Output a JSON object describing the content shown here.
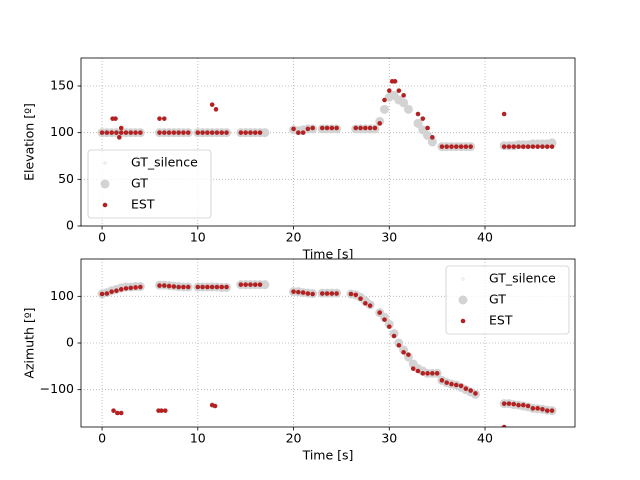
{
  "chart_data": [
    {
      "type": "scatter",
      "xlabel": "Time [s]",
      "ylabel": "Elevation [º]",
      "xlim": [
        -2.2,
        49.4
      ],
      "ylim": [
        0,
        180
      ],
      "xticks": [
        0,
        10,
        20,
        30,
        40
      ],
      "yticks": [
        0,
        50,
        100,
        150
      ],
      "grid": true,
      "legend": "lower left",
      "series": [
        {
          "name": "GT_silence",
          "color": "#f0f0f0",
          "x": [
            0,
            0.3,
            0.6,
            1,
            1.5,
            2,
            2.5,
            3
          ],
          "values": [
            100,
            100,
            100,
            100,
            100,
            100,
            100,
            100
          ]
        },
        {
          "name": "GT",
          "color": "#d3d3d3",
          "x": [
            0,
            0.5,
            1,
            1.5,
            2,
            2.5,
            3,
            3.5,
            4,
            6,
            6.5,
            7,
            7.5,
            8,
            8.5,
            9,
            10,
            10.5,
            11,
            11.5,
            12,
            12.5,
            13,
            14.5,
            15,
            15.5,
            16,
            16.5,
            17,
            20,
            20.5,
            21,
            21.5,
            22,
            23,
            23.5,
            24,
            24.5,
            26.5,
            27,
            27.5,
            28,
            28.5,
            29,
            29.5,
            30,
            30.5,
            31,
            31.5,
            32,
            33,
            33.5,
            34,
            34.5,
            35.5,
            36,
            36.5,
            37,
            37.5,
            38,
            38.5,
            42,
            42.5,
            43,
            43.5,
            44,
            44.5,
            45,
            45.5,
            46,
            46.5,
            47
          ],
          "values": [
            100,
            100,
            100,
            100,
            100,
            100,
            100,
            100,
            100,
            100,
            100,
            100,
            100,
            100,
            100,
            100,
            100,
            100,
            100,
            100,
            100,
            100,
            100,
            100,
            100,
            100,
            100,
            100,
            100,
            103,
            102,
            103,
            104,
            104,
            104,
            104,
            104,
            104,
            104,
            104,
            104,
            104,
            104,
            112,
            125,
            138,
            140,
            135,
            132,
            125,
            110,
            103,
            97,
            90,
            85,
            85,
            85,
            85,
            85,
            85,
            85,
            86,
            86,
            86,
            87,
            87,
            87,
            88,
            88,
            88,
            88,
            89
          ]
        },
        {
          "name": "EST",
          "color": "#b22222",
          "x": [
            0,
            0.5,
            1,
            1.5,
            2,
            2.5,
            3,
            3.5,
            4,
            1.1,
            1.4,
            1.8,
            2,
            6,
            6.5,
            7,
            7.5,
            8,
            8.5,
            9,
            6,
            6.5,
            10,
            10.5,
            11,
            11.5,
            12,
            12.5,
            13,
            11.5,
            11.9,
            14.5,
            15,
            15.5,
            16,
            16.5,
            20,
            20.5,
            21,
            21.5,
            22,
            23,
            23.5,
            24,
            24.5,
            26.5,
            27,
            27.5,
            28,
            28.5,
            29,
            29.5,
            30,
            30.3,
            30.6,
            31,
            31.5,
            33,
            33.5,
            34,
            34.5,
            35.5,
            36,
            36.5,
            37,
            37.5,
            38,
            38.5,
            42,
            42,
            42.5,
            43,
            43.5,
            44,
            44.5,
            45,
            45.5,
            46,
            46.5,
            47
          ],
          "values": [
            100,
            100,
            100,
            100,
            100,
            100,
            100,
            100,
            100,
            115,
            115,
            95,
            105,
            100,
            100,
            100,
            100,
            100,
            100,
            100,
            115,
            115,
            100,
            100,
            100,
            100,
            100,
            100,
            100,
            130,
            125,
            100,
            100,
            100,
            100,
            100,
            104,
            100,
            100,
            104,
            105,
            105,
            105,
            105,
            105,
            105,
            105,
            105,
            105,
            105,
            110,
            135,
            145,
            155,
            155,
            145,
            140,
            120,
            115,
            105,
            95,
            85,
            85,
            85,
            85,
            85,
            85,
            85,
            120,
            85,
            85,
            85,
            85,
            85,
            85,
            85,
            85,
            85,
            85,
            85
          ]
        }
      ]
    },
    {
      "type": "scatter",
      "xlabel": "Time [s]",
      "ylabel": "Azimuth [º]",
      "xlim": [
        -2.2,
        49.4
      ],
      "ylim": [
        -180,
        180
      ],
      "xticks": [
        0,
        10,
        20,
        30,
        40
      ],
      "yticks": [
        {
          "value": -100,
          "label": "−100"
        },
        0,
        100
      ],
      "grid": true,
      "legend": "upper right",
      "series": [
        {
          "name": "GT_silence",
          "color": "#f0f0f0",
          "x": [
            0,
            0.3,
            0.6,
            1,
            1.5,
            2
          ],
          "values": [
            107,
            107,
            108,
            109,
            110,
            112
          ]
        },
        {
          "name": "GT",
          "color": "#d3d3d3",
          "x": [
            0,
            0.5,
            1,
            1.5,
            2,
            2.5,
            3,
            3.5,
            4,
            6,
            6.5,
            7,
            7.5,
            8,
            8.5,
            9,
            10,
            10.5,
            11,
            11.5,
            12,
            12.5,
            13,
            14.5,
            15,
            15.5,
            16,
            16.5,
            17,
            20,
            20.5,
            21,
            21.5,
            22,
            23,
            23.5,
            24,
            24.5,
            26,
            26.5,
            27,
            27.5,
            28,
            29,
            29.5,
            30,
            30.5,
            31,
            31.5,
            32,
            32.5,
            33,
            33.5,
            34,
            34.5,
            35,
            35.5,
            36,
            36.5,
            37,
            37.5,
            38,
            38.5,
            39,
            42,
            42.5,
            43,
            43.5,
            44,
            44.5,
            45,
            45.5,
            46,
            46.5,
            47
          ],
          "values": [
            105,
            108,
            112,
            115,
            118,
            120,
            120,
            121,
            121,
            124,
            124,
            123,
            122,
            121,
            120,
            120,
            120,
            120,
            120,
            120,
            120,
            119,
            119,
            125,
            125,
            125,
            125,
            125,
            125,
            110,
            110,
            108,
            107,
            106,
            107,
            107,
            107,
            107,
            105,
            103,
            98,
            90,
            82,
            65,
            55,
            40,
            20,
            0,
            -15,
            -30,
            -45,
            -55,
            -60,
            -65,
            -65,
            -65,
            -80,
            -85,
            -88,
            -90,
            -95,
            -100,
            -105,
            -110,
            -130,
            -130,
            -132,
            -133,
            -135,
            -137,
            -140,
            -141,
            -142,
            -144,
            -145
          ]
        },
        {
          "name": "EST",
          "color": "#b22222",
          "x": [
            0,
            0.5,
            1,
            1.5,
            2,
            2.5,
            3,
            3.5,
            4,
            1.2,
            1.6,
            2,
            6,
            6.5,
            7,
            7.5,
            8,
            8.5,
            9,
            5.9,
            6.2,
            6.6,
            10,
            10.5,
            11,
            11.5,
            12,
            12.5,
            13,
            11.5,
            11.8,
            14.5,
            15,
            15.5,
            16,
            16.5,
            20,
            20.5,
            21,
            21.5,
            22,
            23,
            23.5,
            24,
            24.5,
            26,
            26.5,
            27,
            27.5,
            28,
            29,
            29.5,
            30,
            30.5,
            31,
            31.5,
            32,
            32.5,
            33,
            33.5,
            34,
            34.5,
            35,
            35.5,
            36,
            36.5,
            37,
            37.5,
            38,
            38.5,
            39,
            42,
            42,
            42.5,
            43,
            43.5,
            44,
            44.5,
            45,
            45.5,
            46,
            46.5,
            47
          ],
          "values": [
            105,
            106,
            110,
            112,
            115,
            117,
            118,
            119,
            120,
            -145,
            -150,
            -150,
            123,
            123,
            122,
            121,
            120,
            120,
            120,
            -145,
            -145,
            -145,
            120,
            120,
            120,
            120,
            120,
            120,
            120,
            -133,
            -135,
            125,
            125,
            125,
            125,
            125,
            110,
            109,
            108,
            106,
            105,
            106,
            106,
            106,
            106,
            105,
            103,
            95,
            85,
            80,
            65,
            50,
            35,
            15,
            -5,
            -20,
            -25,
            -55,
            -60,
            -65,
            -65,
            -65,
            -65,
            -80,
            -85,
            -88,
            -90,
            -92,
            -98,
            -102,
            -108,
            -180,
            -130,
            -130,
            -131,
            -133,
            -133,
            -135,
            -140,
            -140,
            -142,
            -145,
            -145
          ]
        }
      ]
    }
  ]
}
